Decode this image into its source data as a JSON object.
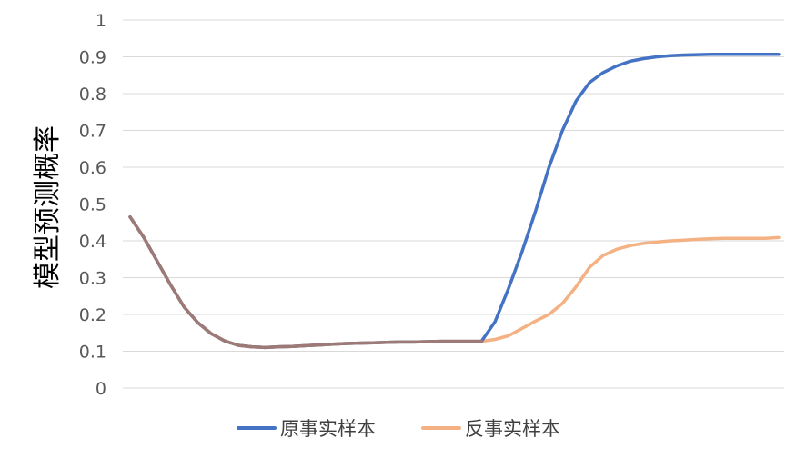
{
  "chart_data": {
    "type": "line",
    "title": "",
    "xlabel": "",
    "ylabel": "模型预测概率",
    "ylim": [
      0,
      1
    ],
    "yticks": [
      "0",
      "0.1",
      "0.2",
      "0.3",
      "0.4",
      "0.5",
      "0.6",
      "0.7",
      "0.8",
      "0.9",
      "1"
    ],
    "grid": true,
    "legend_position": "bottom",
    "series": [
      {
        "name": "原事实样本",
        "color": "#4472C4",
        "values": [
          0.465,
          0.41,
          0.345,
          0.28,
          0.22,
          0.178,
          0.148,
          0.128,
          0.116,
          0.112,
          0.11,
          0.112,
          0.113,
          0.115,
          0.117,
          0.119,
          0.121,
          0.122,
          0.123,
          0.124,
          0.125,
          0.125,
          0.126,
          0.127,
          0.127,
          0.127,
          0.127,
          0.18,
          0.27,
          0.37,
          0.48,
          0.6,
          0.7,
          0.78,
          0.83,
          0.857,
          0.875,
          0.888,
          0.895,
          0.9,
          0.903,
          0.905,
          0.906,
          0.907,
          0.907,
          0.907,
          0.907,
          0.907,
          0.907
        ]
      },
      {
        "name": "反事实样本",
        "color": "#F4B183",
        "values": [
          0.465,
          0.41,
          0.345,
          0.28,
          0.22,
          0.178,
          0.148,
          0.128,
          0.116,
          0.112,
          0.11,
          0.112,
          0.113,
          0.115,
          0.117,
          0.119,
          0.121,
          0.122,
          0.123,
          0.124,
          0.125,
          0.125,
          0.126,
          0.127,
          0.127,
          0.127,
          0.127,
          0.132,
          0.142,
          0.162,
          0.182,
          0.2,
          0.23,
          0.275,
          0.328,
          0.36,
          0.377,
          0.387,
          0.393,
          0.397,
          0.4,
          0.402,
          0.404,
          0.406,
          0.407,
          0.407,
          0.407,
          0.407,
          0.409
        ]
      }
    ]
  }
}
